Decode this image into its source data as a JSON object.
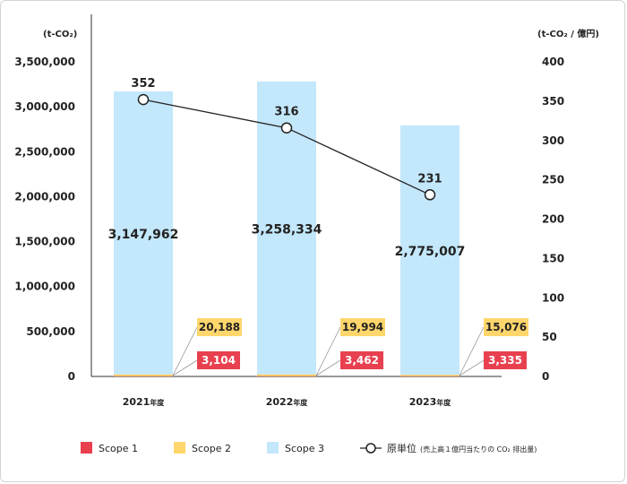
{
  "chart_data": {
    "type": "bar",
    "categories": [
      "2021",
      "2022",
      "2023"
    ],
    "category_suffix": "年度",
    "series": [
      {
        "name": "Scope 1",
        "values": [
          3104,
          3462,
          3335
        ],
        "color": "#e8404f"
      },
      {
        "name": "Scope 2",
        "values": [
          20188,
          19994,
          15076
        ],
        "color": "#fed66b"
      },
      {
        "name": "Scope 3",
        "values": [
          3147962,
          3258334,
          2775007
        ],
        "color": "#c3e7fb"
      }
    ],
    "line_series": {
      "name": "原単位",
      "values": [
        352,
        316,
        231
      ],
      "color": "#222222"
    },
    "legend_note": "(売上高１億円当たりの CO₂ 排出量)",
    "labels": {
      "scope1": [
        "3,104",
        "3,462",
        "3,335"
      ],
      "scope2": [
        "20,188",
        "19,994",
        "15,076"
      ],
      "scope3": [
        "3,147,962",
        "3,258,334",
        "2,775,007"
      ],
      "intensity": [
        "352",
        "316",
        "231"
      ]
    },
    "left_axis": {
      "unit": "(t-CO₂)",
      "range": [
        0,
        3500000
      ],
      "ticks": [
        "0",
        "500,000",
        "1,000,000",
        "1,500,000",
        "2,000,000",
        "2,500,000",
        "3,000,000",
        "3,500,000"
      ]
    },
    "right_axis": {
      "unit": "(t-CO₂ / 億円)",
      "range": [
        0,
        400
      ],
      "ticks": [
        "0",
        "50",
        "100",
        "150",
        "200",
        "250",
        "300",
        "350",
        "400"
      ]
    },
    "legend_placement": "bottom",
    "grid": false
  }
}
